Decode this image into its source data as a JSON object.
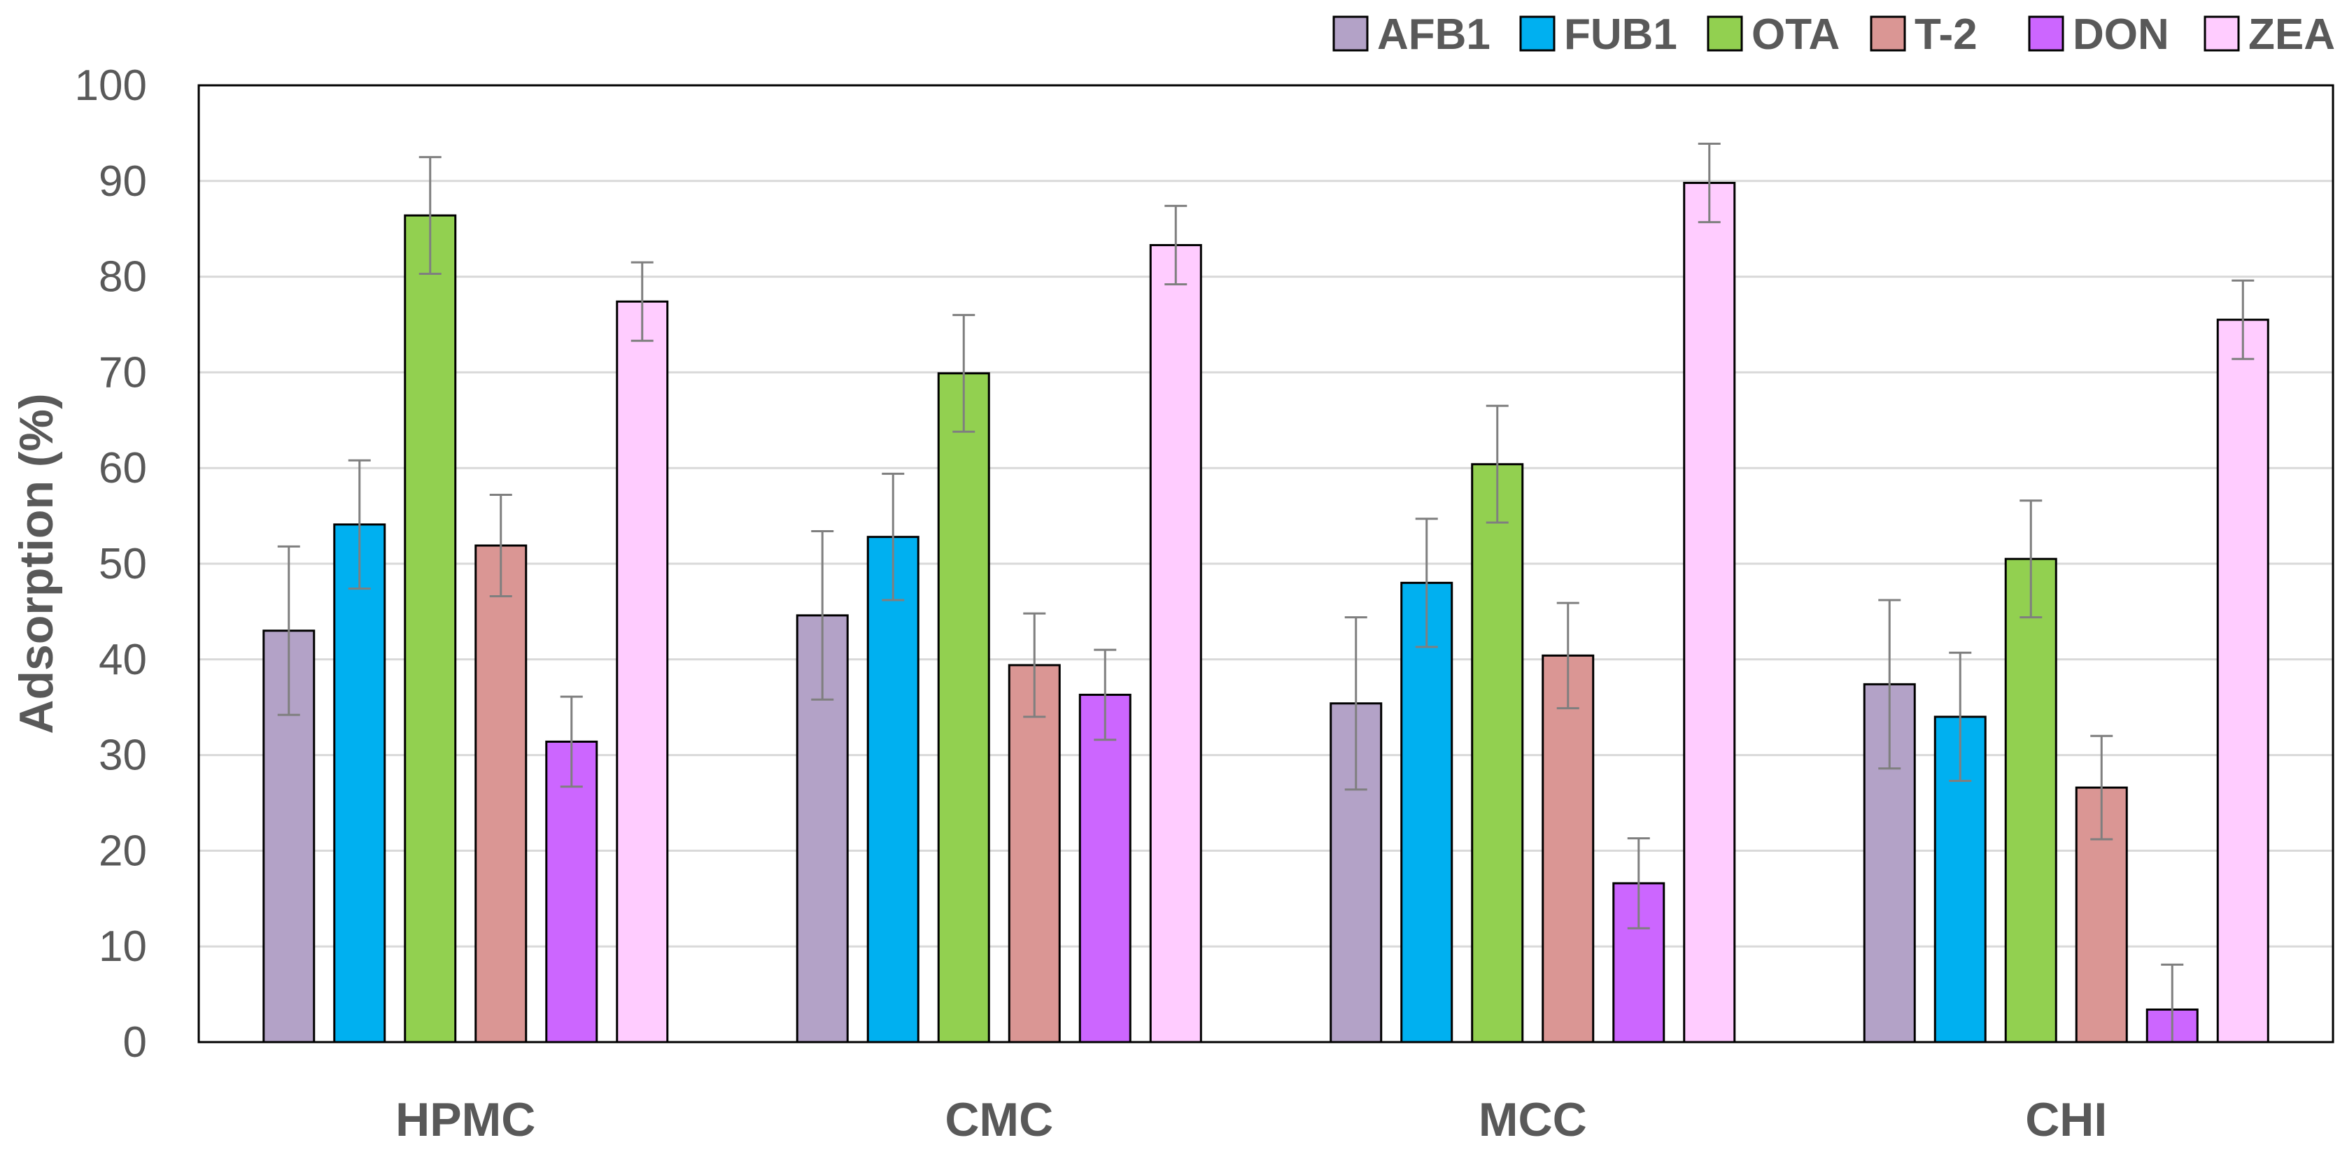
{
  "chart_data": {
    "type": "bar",
    "title": "",
    "xlabel": "",
    "ylabel": "Adsorption (%)",
    "ylim": [
      0,
      100
    ],
    "yticks": [
      0,
      10,
      20,
      30,
      40,
      50,
      60,
      70,
      80,
      90,
      100
    ],
    "grid": true,
    "legend_position": "top-right",
    "categories": [
      "HPMC",
      "CMC",
      "MCC",
      "CHI"
    ],
    "series": [
      {
        "name": "AFB1",
        "color": "#B3A2C7",
        "values": [
          43.0,
          44.6,
          35.4,
          37.4
        ],
        "errors": [
          8.8,
          8.8,
          9.0,
          8.8
        ]
      },
      {
        "name": "FUB1",
        "color": "#00B0F0",
        "values": [
          54.1,
          52.8,
          48.0,
          34.0
        ],
        "errors": [
          6.7,
          6.6,
          6.7,
          6.7
        ]
      },
      {
        "name": "OTA",
        "color": "#92D050",
        "values": [
          86.4,
          69.9,
          60.4,
          50.5
        ],
        "errors": [
          6.1,
          6.1,
          6.1,
          6.1
        ]
      },
      {
        "name": "T-2",
        "color": "#DA9694",
        "values": [
          51.9,
          39.4,
          40.4,
          26.6
        ],
        "errors": [
          5.3,
          5.4,
          5.5,
          5.4
        ]
      },
      {
        "name": "DON",
        "color": "#CC66FF",
        "values": [
          31.4,
          36.3,
          16.6,
          3.4
        ],
        "errors": [
          4.7,
          4.7,
          4.7,
          4.7
        ]
      },
      {
        "name": "ZEA",
        "color": "#FFCCFF",
        "values": [
          77.4,
          83.3,
          89.8,
          75.5
        ],
        "errors": [
          4.1,
          4.1,
          4.1,
          4.1
        ]
      }
    ]
  }
}
